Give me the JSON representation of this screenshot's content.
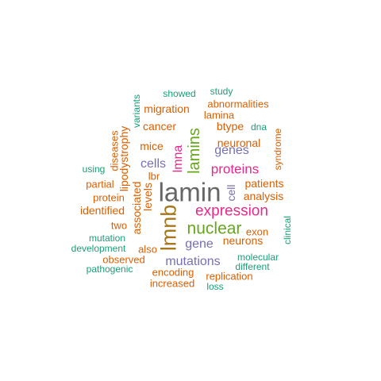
{
  "words": [
    {
      "text": "lamin",
      "color": "#666666"
    },
    {
      "text": "lmnb",
      "color": "#a6761d"
    },
    {
      "text": "nuclear",
      "color": "#66a61e"
    },
    {
      "text": "expression",
      "color": "#e7298a"
    },
    {
      "text": "lamins",
      "color": "#66a61e"
    },
    {
      "text": "proteins",
      "color": "#e7298a"
    },
    {
      "text": "lmna",
      "color": "#e7298a"
    },
    {
      "text": "mutations",
      "color": "#7570b3"
    },
    {
      "text": "genes",
      "color": "#7570b3"
    },
    {
      "text": "cells",
      "color": "#7570b3"
    },
    {
      "text": "gene",
      "color": "#7570b3"
    },
    {
      "text": "cell",
      "color": "#7570b3"
    },
    {
      "text": "study",
      "color": "#1b9e77"
    },
    {
      "text": "showed",
      "color": "#1b9e77"
    },
    {
      "text": "variants",
      "color": "#1b9e77"
    },
    {
      "text": "migration",
      "color": "#d95f02"
    },
    {
      "text": "abnormalities",
      "color": "#d95f02"
    },
    {
      "text": "lamina",
      "color": "#d95f02"
    },
    {
      "text": "cancer",
      "color": "#d95f02"
    },
    {
      "text": "btype",
      "color": "#d95f02"
    },
    {
      "text": "dna",
      "color": "#1b9e77"
    },
    {
      "text": "diseases",
      "color": "#d95f02"
    },
    {
      "text": "lipodystrophy",
      "color": "#d95f02"
    },
    {
      "text": "syndrome",
      "color": "#d95f02"
    },
    {
      "text": "mice",
      "color": "#d95f02"
    },
    {
      "text": "neuronal",
      "color": "#d95f02"
    },
    {
      "text": "using",
      "color": "#1b9e77"
    },
    {
      "text": "lbr",
      "color": "#d95f02"
    },
    {
      "text": "partial",
      "color": "#d95f02"
    },
    {
      "text": "patients",
      "color": "#d95f02"
    },
    {
      "text": "protein",
      "color": "#d95f02"
    },
    {
      "text": "associated",
      "color": "#d95f02"
    },
    {
      "text": "levels",
      "color": "#d95f02"
    },
    {
      "text": "analysis",
      "color": "#d95f02"
    },
    {
      "text": "identified",
      "color": "#d95f02"
    },
    {
      "text": "clinical",
      "color": "#1b9e77"
    },
    {
      "text": "two",
      "color": "#d95f02"
    },
    {
      "text": "exon",
      "color": "#d95f02"
    },
    {
      "text": "mutation",
      "color": "#1b9e77"
    },
    {
      "text": "neurons",
      "color": "#d95f02"
    },
    {
      "text": "development",
      "color": "#1b9e77"
    },
    {
      "text": "also",
      "color": "#d95f02"
    },
    {
      "text": "observed",
      "color": "#d95f02"
    },
    {
      "text": "molecular",
      "color": "#1b9e77"
    },
    {
      "text": "different",
      "color": "#1b9e77"
    },
    {
      "text": "pathogenic",
      "color": "#1b9e77"
    },
    {
      "text": "encoding",
      "color": "#d95f02"
    },
    {
      "text": "replication",
      "color": "#d95f02"
    },
    {
      "text": "increased",
      "color": "#d95f02"
    },
    {
      "text": "loss",
      "color": "#1b9e77"
    }
  ]
}
